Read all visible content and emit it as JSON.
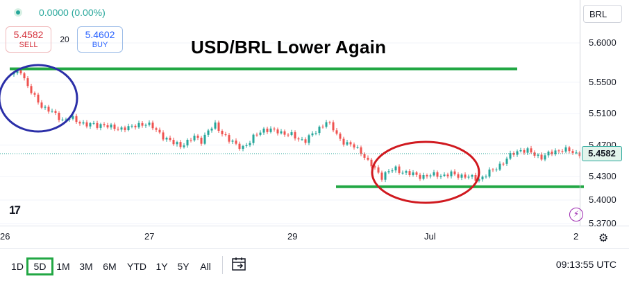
{
  "header": {
    "change_text": "0.0000 (0.00%)",
    "sell": {
      "price": "5.4582",
      "label": "SELL"
    },
    "spread": "20",
    "buy": {
      "price": "5.4602",
      "label": "BUY"
    },
    "headline": "USD/BRL Lower Again"
  },
  "price_axis": {
    "currency": "BRL",
    "ticks": [
      "5.6000",
      "5.5500",
      "5.5100",
      "5.4700",
      "5.4300",
      "5.4000",
      "5.3700"
    ],
    "last_price": "5.4582"
  },
  "time_axis": {
    "labels": [
      "26",
      "27",
      "29",
      "Jul",
      "2"
    ]
  },
  "annotations": {
    "resistance_level": 5.567,
    "support_level": 5.417
  },
  "colors": {
    "up": "#26a69a",
    "down": "#ef5350",
    "resistance_line": "#22a744",
    "support_line": "#22a744",
    "circle_blue": "#2b2fa8",
    "circle_red": "#d0191f",
    "active_range": "#22a744"
  },
  "icons": {
    "logo": "tradingview-logo-icon",
    "bolt": "lightning-icon",
    "settings": "gear-icon",
    "calendar": "date-range-icon"
  },
  "toolbar": {
    "ranges": [
      "1D",
      "5D",
      "1M",
      "3M",
      "6M",
      "YTD",
      "1Y",
      "5Y",
      "All"
    ],
    "active_range": "5D",
    "clock": "09:13:55 UTC",
    "logo_text": "17"
  },
  "chart_data": {
    "type": "candlestick",
    "title": "USD/BRL Lower Again",
    "xlabel": "",
    "ylabel": "",
    "ylim": [
      5.365,
      5.63
    ],
    "x_ticks": [
      "26",
      "27",
      "29",
      "Jul",
      "2"
    ],
    "y_ticks": [
      5.6,
      5.55,
      5.51,
      5.47,
      5.43,
      5.4,
      5.37
    ],
    "last_price": 5.4582,
    "grid": "horizontal",
    "approx_close_path": [
      [
        0,
        5.56
      ],
      [
        2,
        5.565
      ],
      [
        4,
        5.545
      ],
      [
        6,
        5.53
      ],
      [
        8,
        5.52
      ],
      [
        10,
        5.515
      ],
      [
        12,
        5.508
      ],
      [
        14,
        5.502
      ],
      [
        16,
        5.505
      ],
      [
        18,
        5.5
      ],
      [
        20,
        5.498
      ],
      [
        22,
        5.496
      ],
      [
        24,
        5.494
      ],
      [
        26,
        5.497
      ],
      [
        28,
        5.492
      ],
      [
        30,
        5.49
      ],
      [
        32,
        5.493
      ],
      [
        34,
        5.492
      ],
      [
        36,
        5.496
      ],
      [
        38,
        5.498
      ],
      [
        40,
        5.492
      ],
      [
        42,
        5.485
      ],
      [
        44,
        5.478
      ],
      [
        46,
        5.472
      ],
      [
        48,
        5.47
      ],
      [
        50,
        5.474
      ],
      [
        52,
        5.48
      ],
      [
        54,
        5.476
      ],
      [
        56,
        5.488
      ],
      [
        58,
        5.495
      ],
      [
        60,
        5.486
      ],
      [
        62,
        5.476
      ],
      [
        64,
        5.47
      ],
      [
        66,
        5.468
      ],
      [
        68,
        5.473
      ],
      [
        70,
        5.485
      ],
      [
        72,
        5.49
      ],
      [
        74,
        5.488
      ],
      [
        76,
        5.488
      ],
      [
        78,
        5.485
      ],
      [
        80,
        5.482
      ],
      [
        82,
        5.478
      ],
      [
        84,
        5.476
      ],
      [
        86,
        5.483
      ],
      [
        88,
        5.492
      ],
      [
        90,
        5.5
      ],
      [
        92,
        5.49
      ],
      [
        94,
        5.478
      ],
      [
        96,
        5.471
      ],
      [
        98,
        5.468
      ],
      [
        100,
        5.462
      ],
      [
        102,
        5.448
      ],
      [
        104,
        5.44
      ],
      [
        106,
        5.43
      ],
      [
        108,
        5.436
      ],
      [
        110,
        5.44
      ],
      [
        112,
        5.436
      ],
      [
        114,
        5.433
      ],
      [
        116,
        5.432
      ],
      [
        118,
        5.43
      ],
      [
        120,
        5.431
      ],
      [
        122,
        5.433
      ],
      [
        124,
        5.431
      ],
      [
        126,
        5.433
      ],
      [
        128,
        5.432
      ],
      [
        130,
        5.43
      ],
      [
        132,
        5.428
      ],
      [
        134,
        5.427
      ],
      [
        136,
        5.432
      ],
      [
        138,
        5.438
      ],
      [
        140,
        5.445
      ],
      [
        142,
        5.452
      ],
      [
        144,
        5.46
      ],
      [
        146,
        5.464
      ],
      [
        148,
        5.462
      ],
      [
        150,
        5.458
      ],
      [
        152,
        5.455
      ],
      [
        154,
        5.458
      ],
      [
        156,
        5.462
      ],
      [
        158,
        5.465
      ],
      [
        160,
        5.462
      ],
      [
        162,
        5.459
      ],
      [
        164,
        5.461
      ],
      [
        166,
        5.458
      ]
    ]
  }
}
